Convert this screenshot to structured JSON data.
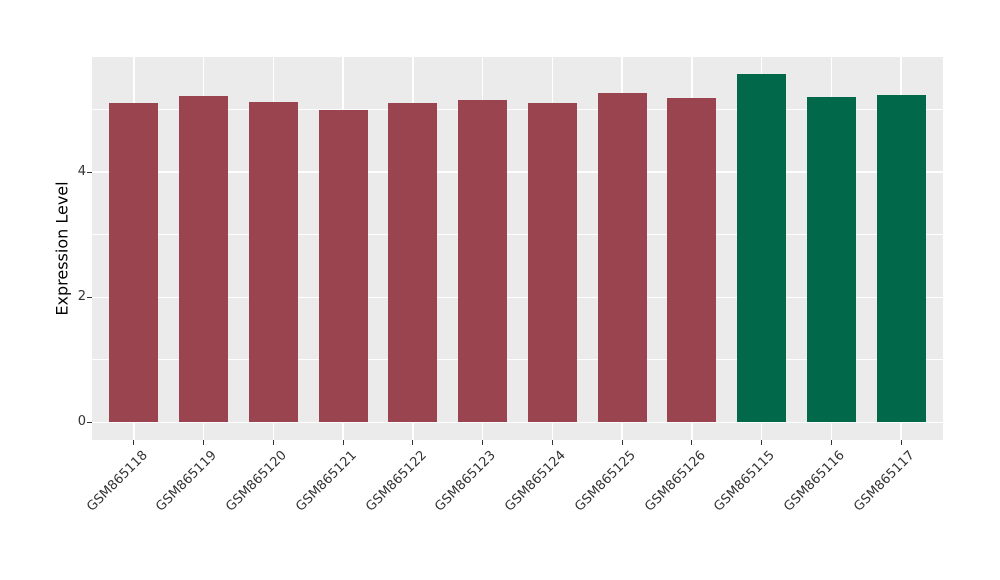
{
  "chart_data": {
    "type": "bar",
    "title": "",
    "xlabel": "",
    "ylabel": "Expression Level",
    "categories": [
      "GSM865118",
      "GSM865119",
      "GSM865120",
      "GSM865121",
      "GSM865122",
      "GSM865123",
      "GSM865124",
      "GSM865125",
      "GSM865126",
      "GSM865115",
      "GSM865116",
      "GSM865117"
    ],
    "values": [
      5.11,
      5.22,
      5.12,
      4.99,
      5.11,
      5.16,
      5.1,
      5.26,
      5.18,
      5.57,
      5.2,
      5.23
    ],
    "bar_colors": [
      "#9A4450",
      "#9A4450",
      "#9A4450",
      "#9A4450",
      "#9A4450",
      "#9A4450",
      "#9A4450",
      "#9A4450",
      "#9A4450",
      "#016949",
      "#016949",
      "#016949"
    ],
    "y_ticks": [
      0,
      2,
      4
    ],
    "y_minor_ticks": [
      1,
      3,
      5
    ],
    "ylim": [
      -0.28,
      5.84
    ],
    "bar_width_frac": 0.7,
    "grid": true,
    "legend": false,
    "colors": {
      "panel_background": "#EBEBEB",
      "grid_line": "#FFFFFF",
      "bar_maroon": "#9A4450",
      "bar_green": "#016949",
      "tick_text": "#333333",
      "axis_title_text": "#000000"
    }
  }
}
